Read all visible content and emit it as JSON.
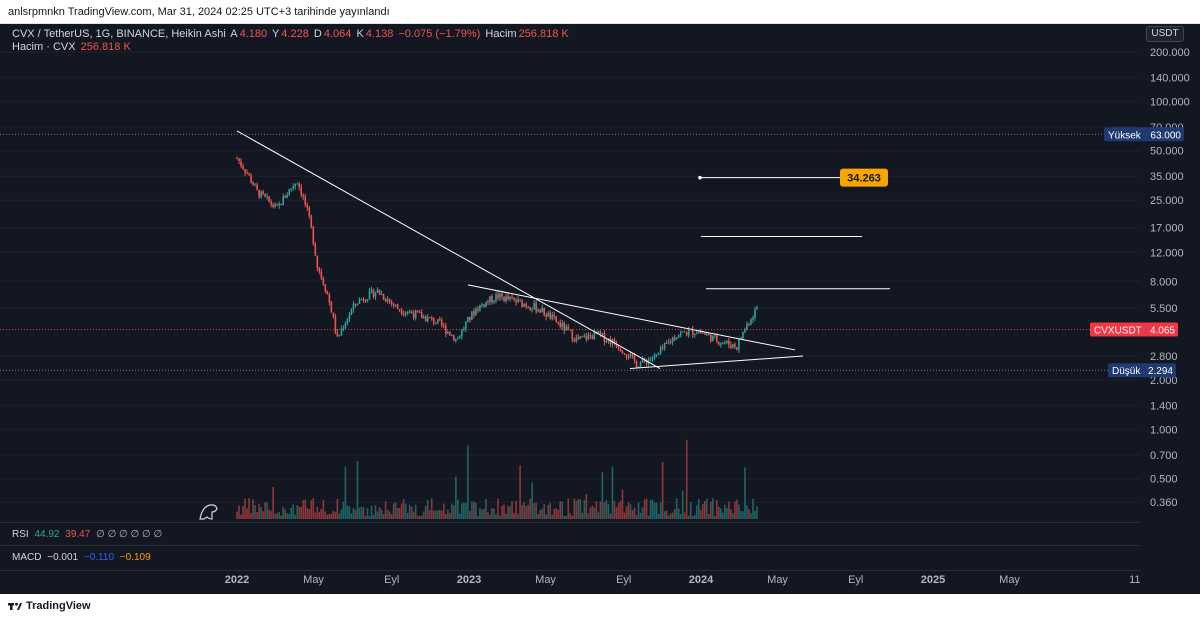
{
  "header": {
    "published": "anlsrpmnkn TradingView.com, Mar 31, 2024 02:25 UTC+3 tarihinde yayınlandı"
  },
  "legend": {
    "symbol": "CVX / TetherUS, 1G, BINANCE, Heikin Ashi",
    "o_label": "A",
    "o_value": "4.180",
    "h_label": "Y",
    "h_value": "4.228",
    "l_label": "D",
    "l_value": "4.064",
    "c_label": "K",
    "c_value": "4.138",
    "change": "−0.075 (−1.79%)",
    "vol_label": "Hacim",
    "vol_value": "256.818 K",
    "vol_series_label": "Hacim · CVX",
    "vol_series_value": "256.818 K"
  },
  "currency_button": "USDT",
  "indicators": {
    "rsi": {
      "label": "RSI",
      "v1": "44.92",
      "v2": "39.47",
      "rest": "∅ ∅ ∅ ∅ ∅ ∅"
    },
    "macd": {
      "label": "MACD",
      "v1": "−0.001",
      "v2": "−0.110",
      "v3": "−0.109"
    }
  },
  "footer": {
    "brand": "TradingView"
  },
  "colors": {
    "bg": "#131722",
    "up": "#26a69a",
    "down": "#ef5350",
    "grid": "#1e222d",
    "axis_text": "#b2b5be",
    "high_badge": "#1e3a6e",
    "price_badge": "#f23645",
    "target_badge": "#f7a600",
    "trendline": "#ffffff"
  },
  "chart_data": {
    "type": "line",
    "title": "CVX / TetherUS, 1G, BINANCE, Heikin Ashi",
    "scale": "log",
    "ylim": [
      0.3,
      250
    ],
    "y_ticks": [
      "200.000",
      "140.000",
      "100.000",
      "70.000",
      "50.000",
      "35.000",
      "25.000",
      "17.000",
      "12.000",
      "8.000",
      "5.500",
      "2.800",
      "2.000",
      "1.400",
      "1.000",
      "0.700",
      "0.500",
      "0.360"
    ],
    "x_ticks": [
      "2022",
      "May",
      "Eyl",
      "2023",
      "May",
      "Eyl",
      "2024",
      "May",
      "Eyl",
      "2025",
      "May",
      "11"
    ],
    "x": [
      "2022-01",
      "2022-02",
      "2022-03",
      "2022-04",
      "2022-05",
      "2022-06",
      "2022-07",
      "2022-08",
      "2022-09",
      "2022-10",
      "2022-11",
      "2022-12",
      "2023-01",
      "2023-02",
      "2023-03",
      "2023-04",
      "2023-05",
      "2023-06",
      "2023-07",
      "2023-08",
      "2023-09",
      "2023-10",
      "2023-11",
      "2023-12",
      "2024-01",
      "2024-02",
      "2024-03"
    ],
    "series": [
      {
        "values": [
          45,
          28,
          22,
          33,
          10,
          3.5,
          6,
          7,
          5.5,
          5,
          4.5,
          3.5,
          5.5,
          6.5,
          6,
          5.5,
          4.5,
          3.5,
          3.8,
          3.3,
          2.5,
          2.8,
          3.8,
          4,
          3.5,
          3.2,
          5.5
        ]
      }
    ],
    "price_labels": {
      "high": {
        "label": "Yüksek",
        "value": "63.000"
      },
      "current": {
        "label": "CVXUSDT",
        "value": "4.065"
      },
      "low": {
        "label": "Düşük",
        "value": "2.294"
      },
      "target": {
        "value": "34.263"
      }
    },
    "horizontal_levels": [
      34.263,
      15,
      7.2
    ]
  }
}
